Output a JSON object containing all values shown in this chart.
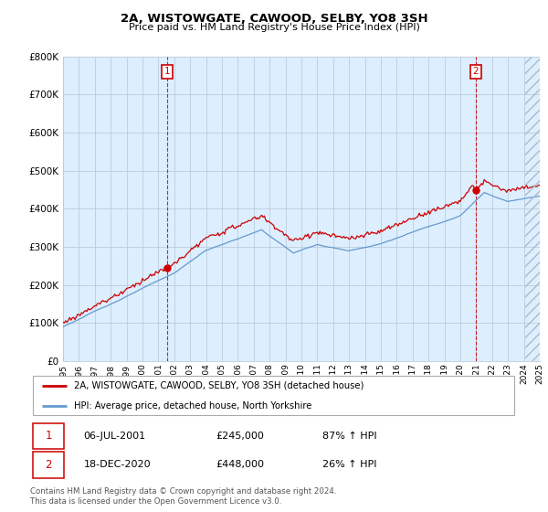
{
  "title": "2A, WISTOWGATE, CAWOOD, SELBY, YO8 3SH",
  "subtitle": "Price paid vs. HM Land Registry's House Price Index (HPI)",
  "legend_line1": "2A, WISTOWGATE, CAWOOD, SELBY, YO8 3SH (detached house)",
  "legend_line2": "HPI: Average price, detached house, North Yorkshire",
  "footnote1": "Contains HM Land Registry data © Crown copyright and database right 2024.",
  "footnote2": "This data is licensed under the Open Government Licence v3.0.",
  "table_rows": [
    {
      "num": "1",
      "date": "06-JUL-2001",
      "price": "£245,000",
      "hpi": "87% ↑ HPI"
    },
    {
      "num": "2",
      "date": "18-DEC-2020",
      "price": "£448,000",
      "hpi": "26% ↑ HPI"
    }
  ],
  "sale1_x": 2001.54,
  "sale1_y": 245000,
  "sale2_x": 2020.96,
  "sale2_y": 448000,
  "red_color": "#cc0000",
  "blue_color": "#6699cc",
  "chart_bg": "#ddeeff",
  "ylim": [
    0,
    800000
  ],
  "xlim_start": 1995,
  "xlim_end": 2025,
  "background_color": "#ffffff",
  "grid_color": "#bbccdd"
}
